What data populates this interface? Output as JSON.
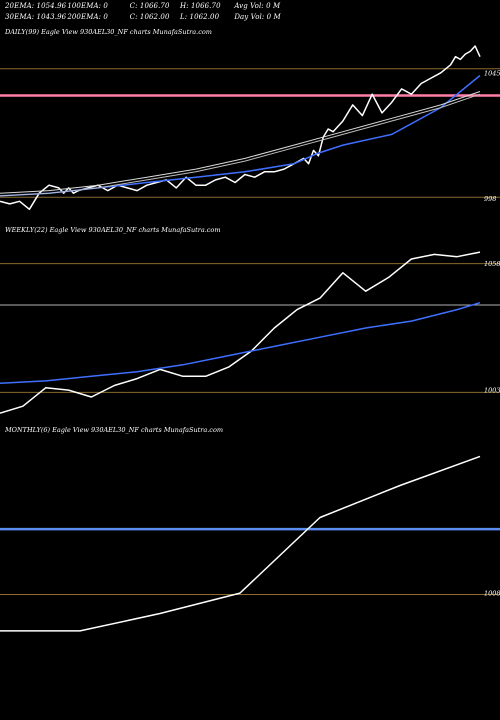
{
  "header": {
    "row1": [
      "20EMA: 1054.96",
      "100EMA: 0",
      "C: 1066.70",
      "H: 1066.70",
      "Avg Vol: 0  M"
    ],
    "row2": [
      "30EMA: 1043.96",
      "200EMA: 0",
      "C: 1062.00",
      "L: 1062.00",
      "Day Vol: 0  M"
    ]
  },
  "chart_data": [
    {
      "type": "line",
      "title": "DAILY(99) Eagle  View  930AEL30_NF charts MunafaSutra.com",
      "ylim": [
        990,
        1058
      ],
      "y_labels": [
        {
          "text": "1045",
          "value": 1045
        },
        {
          "text": "998",
          "value": 998
        }
      ],
      "hlines": [
        {
          "value": 1046.5,
          "color": "#8a6a2e",
          "width": 1
        },
        {
          "value": 1036.5,
          "color": "#ff7fa7",
          "width": 2.5
        },
        {
          "value": 998.5,
          "color": "#8a6a2e",
          "width": 1
        }
      ],
      "series": [
        {
          "color": "#ffffff",
          "width": 1.5,
          "x": [
            0,
            2,
            4,
            6,
            8,
            10,
            12,
            13,
            14,
            15,
            16,
            18,
            20,
            22,
            24,
            26,
            28,
            30,
            32,
            34,
            36,
            38,
            40,
            42,
            44,
            46,
            48,
            50,
            52,
            54,
            56,
            58,
            60,
            62,
            63,
            64,
            65,
            66,
            67,
            68,
            70,
            72,
            74,
            76,
            78,
            80,
            82,
            84,
            86,
            88,
            90,
            92,
            93,
            94,
            95,
            96,
            97,
            98
          ],
          "values": [
            997,
            996,
            997,
            994,
            1000,
            1003,
            1002,
            1000,
            1002,
            1000,
            1001,
            1002,
            1003,
            1001,
            1003,
            1002,
            1001,
            1003,
            1004,
            1005,
            1002,
            1006,
            1003,
            1003,
            1005,
            1006,
            1004,
            1007,
            1006,
            1008,
            1008,
            1009,
            1011,
            1013,
            1011,
            1016,
            1014,
            1021,
            1024,
            1023,
            1027,
            1033,
            1029,
            1037,
            1030,
            1034,
            1039,
            1037,
            1041,
            1043,
            1045,
            1048,
            1051,
            1050,
            1052,
            1053,
            1055,
            1051
          ]
        },
        {
          "color": "#3f6fff",
          "width": 1.5,
          "x": [
            0,
            10,
            20,
            30,
            40,
            50,
            60,
            65,
            70,
            80,
            90,
            98
          ],
          "values": [
            999,
            1000,
            1002,
            1004,
            1006,
            1008,
            1011,
            1015,
            1018,
            1022,
            1032,
            1044
          ]
        },
        {
          "color": "#d9d9d9",
          "width": 1,
          "x": [
            0,
            10,
            20,
            30,
            40,
            50,
            60,
            70,
            80,
            90,
            98
          ],
          "values": [
            1000,
            1001,
            1003,
            1006,
            1009,
            1013,
            1018,
            1023,
            1028,
            1033,
            1038
          ]
        },
        {
          "color": "#bdbdbd",
          "width": 1,
          "x": [
            0,
            10,
            20,
            30,
            40,
            50,
            60,
            70,
            80,
            90,
            98
          ],
          "values": [
            999,
            1000,
            1002,
            1005,
            1008,
            1012,
            1017,
            1022,
            1027,
            1032,
            1037
          ]
        }
      ]
    },
    {
      "type": "line",
      "title": "WEEKLY(22) Eagle  View  930AEL30_NF charts MunafaSutra.com",
      "ylim": [
        990,
        1070
      ],
      "y_labels": [
        {
          "text": "1058",
          "value": 1058
        },
        {
          "text": "1003",
          "value": 1003
        }
      ],
      "hlines": [
        {
          "value": 1058,
          "color": "#8a6a2e",
          "width": 1
        },
        {
          "value": 1040,
          "color": "#b0b0b0",
          "width": 1
        },
        {
          "value": 1002,
          "color": "#8a6a2e",
          "width": 1
        }
      ],
      "series": [
        {
          "color": "#ffffff",
          "width": 1.5,
          "x": [
            0,
            1,
            2,
            3,
            4,
            5,
            6,
            7,
            8,
            9,
            10,
            11,
            12,
            13,
            14,
            15,
            16,
            17,
            18,
            19,
            20,
            21
          ],
          "values": [
            993,
            996,
            1004,
            1003,
            1000,
            1005,
            1008,
            1012,
            1009,
            1009,
            1013,
            1020,
            1030,
            1038,
            1043,
            1054,
            1046,
            1052,
            1060,
            1062,
            1061,
            1063
          ]
        },
        {
          "color": "#3f6fff",
          "width": 1.5,
          "x": [
            0,
            2,
            4,
            6,
            8,
            10,
            12,
            14,
            16,
            18,
            20,
            21
          ],
          "values": [
            1006,
            1007,
            1009,
            1011,
            1014,
            1018,
            1022,
            1026,
            1030,
            1033,
            1038,
            1041
          ]
        }
      ]
    },
    {
      "type": "line",
      "title": "MONTHLY(6) Eagle  View  930AEL30_NF charts MunafaSutra.com",
      "ylim": [
        985,
        1062
      ],
      "y_labels": [
        {
          "text": "1008",
          "value": 1008
        }
      ],
      "hlines": [
        {
          "value": 1007.5,
          "color": "#8a6a2e",
          "width": 1
        },
        {
          "value": 1030,
          "color": "#5b8ef0",
          "width": 2.5
        }
      ],
      "series": [
        {
          "color": "#ffffff",
          "width": 1.5,
          "x": [
            0,
            1,
            2,
            3,
            4,
            5,
            6
          ],
          "values": [
            995,
            995,
            1001,
            1008,
            1034,
            1045,
            1055
          ]
        }
      ]
    }
  ]
}
